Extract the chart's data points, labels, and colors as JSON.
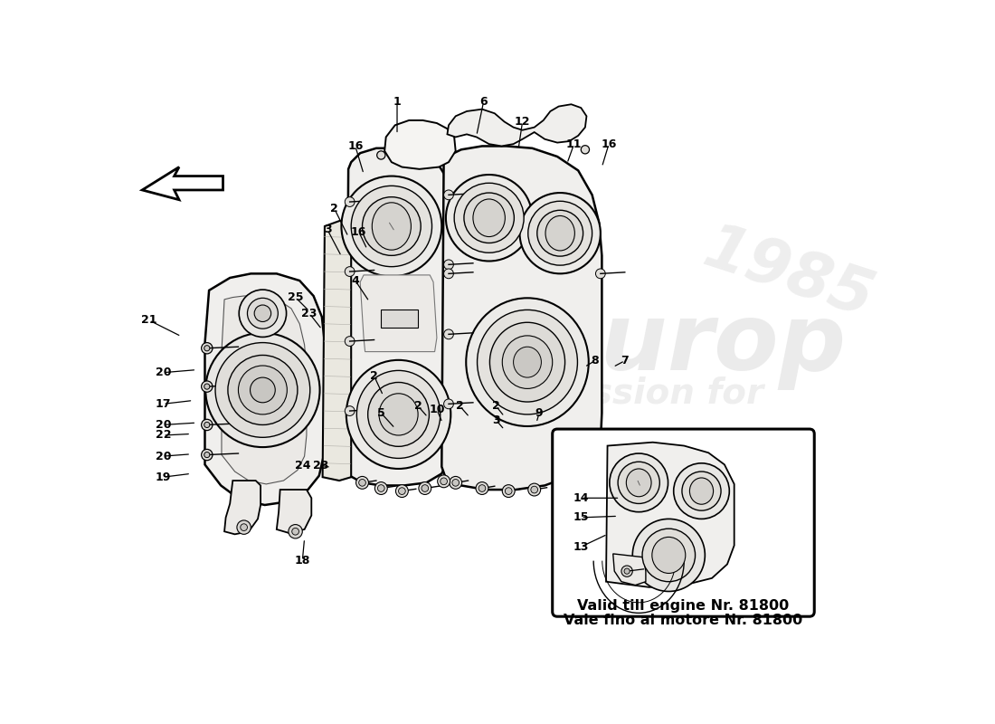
{
  "bg_color": "#ffffff",
  "title_line1": "Vale fino al motore Nr. 81800",
  "title_line2": "Valid till engine Nr. 81800",
  "fig_width": 11.0,
  "fig_height": 8.0,
  "dpi": 100,
  "callout_data": [
    [
      "1",
      388,
      22,
      388,
      68
    ],
    [
      "2",
      298,
      175,
      318,
      215
    ],
    [
      "2",
      355,
      415,
      368,
      443
    ],
    [
      "2",
      418,
      458,
      432,
      474
    ],
    [
      "2",
      478,
      458,
      492,
      474
    ],
    [
      "2",
      530,
      458,
      542,
      473
    ],
    [
      "3",
      288,
      205,
      308,
      243
    ],
    [
      "3",
      530,
      478,
      542,
      492
    ],
    [
      "4",
      328,
      278,
      348,
      308
    ],
    [
      "5",
      365,
      468,
      385,
      490
    ],
    [
      "6",
      512,
      22,
      502,
      70
    ],
    [
      "7",
      715,
      393,
      698,
      402
    ],
    [
      "8",
      672,
      393,
      657,
      402
    ],
    [
      "9",
      592,
      468,
      588,
      482
    ],
    [
      "10",
      445,
      463,
      453,
      482
    ],
    [
      "11",
      642,
      82,
      632,
      110
    ],
    [
      "12",
      568,
      50,
      562,
      90
    ],
    [
      "16",
      328,
      85,
      340,
      125
    ],
    [
      "16",
      333,
      208,
      345,
      233
    ],
    [
      "16",
      692,
      82,
      682,
      115
    ],
    [
      "17",
      52,
      455,
      95,
      450
    ],
    [
      "18",
      252,
      680,
      255,
      648
    ],
    [
      "19",
      52,
      560,
      92,
      555
    ],
    [
      "20",
      52,
      410,
      100,
      406
    ],
    [
      "20",
      52,
      485,
      100,
      482
    ],
    [
      "20",
      52,
      530,
      92,
      527
    ],
    [
      "21",
      32,
      335,
      78,
      358
    ],
    [
      "22",
      52,
      500,
      92,
      498
    ],
    [
      "23",
      262,
      325,
      280,
      348
    ],
    [
      "23",
      278,
      543,
      293,
      546
    ],
    [
      "24",
      252,
      543,
      264,
      546
    ],
    [
      "25",
      242,
      302,
      262,
      322
    ]
  ],
  "inset_callouts": [
    [
      "14",
      652,
      590,
      708,
      590
    ],
    [
      "15",
      652,
      618,
      705,
      616
    ],
    [
      "13",
      652,
      660,
      690,
      642
    ]
  ]
}
